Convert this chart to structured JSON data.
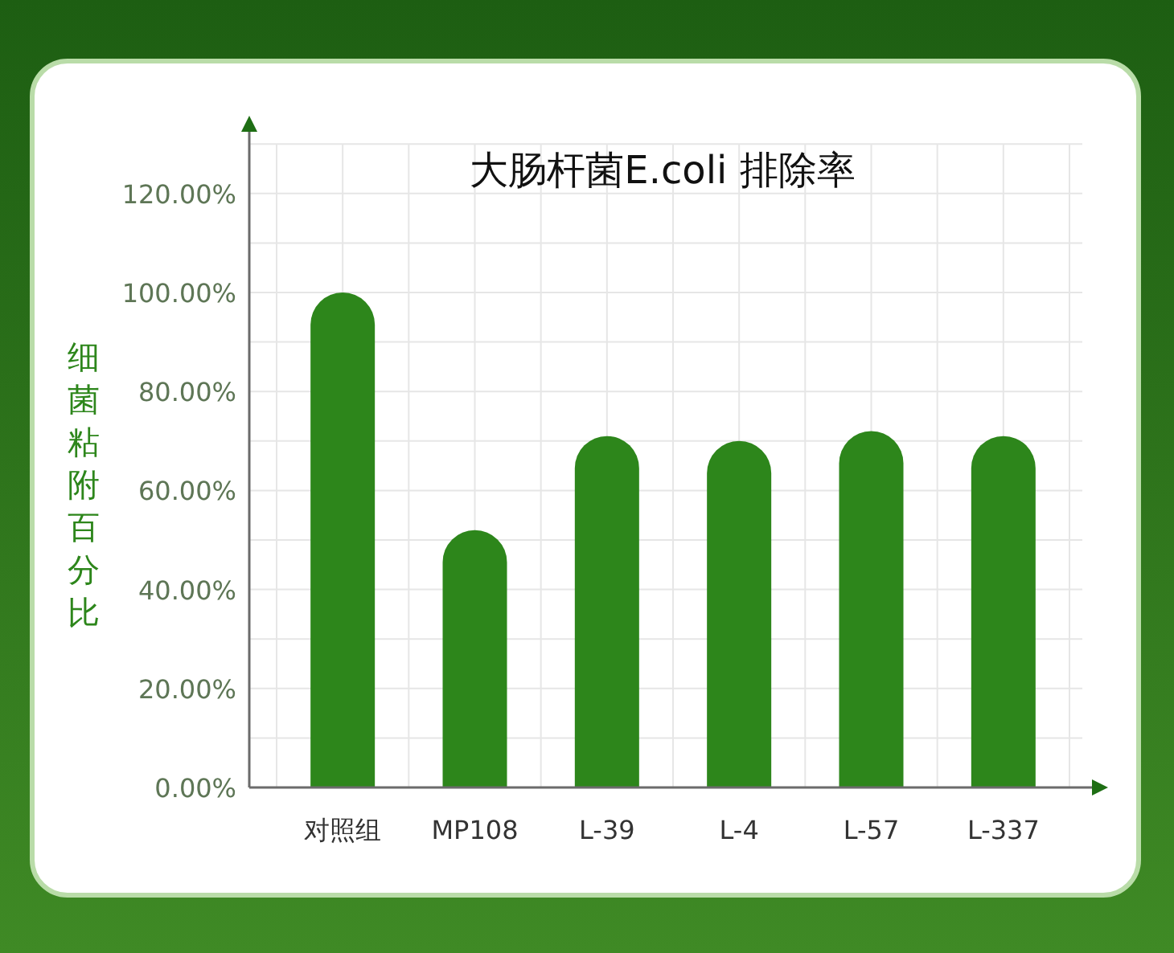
{
  "chart_data": {
    "type": "bar",
    "title": "大肠杆菌E.coli 排除率",
    "ylabel": "细菌粘附百分比",
    "categories": [
      "对照组",
      "MP108",
      "L-39",
      "L-4",
      "L-57",
      "L-337"
    ],
    "values": [
      100,
      52,
      71,
      70,
      72,
      71
    ],
    "color": "#2d861b",
    "ylim": [
      0,
      130
    ],
    "yticks": [
      {
        "value": 0,
        "label": "0.00%"
      },
      {
        "value": 10,
        "label": null
      },
      {
        "value": 20,
        "label": "20.00%"
      },
      {
        "value": 30,
        "label": null
      },
      {
        "value": 40,
        "label": "40.00%"
      },
      {
        "value": 50,
        "label": null
      },
      {
        "value": 60,
        "label": "60.00%"
      },
      {
        "value": 70,
        "label": null
      },
      {
        "value": 80,
        "label": "80.00%"
      },
      {
        "value": 90,
        "label": null
      },
      {
        "value": 100,
        "label": "100.00%"
      },
      {
        "value": 110,
        "label": null
      },
      {
        "value": 120,
        "label": "120.00%"
      },
      {
        "value": 130,
        "label": null
      }
    ],
    "grid": true
  }
}
